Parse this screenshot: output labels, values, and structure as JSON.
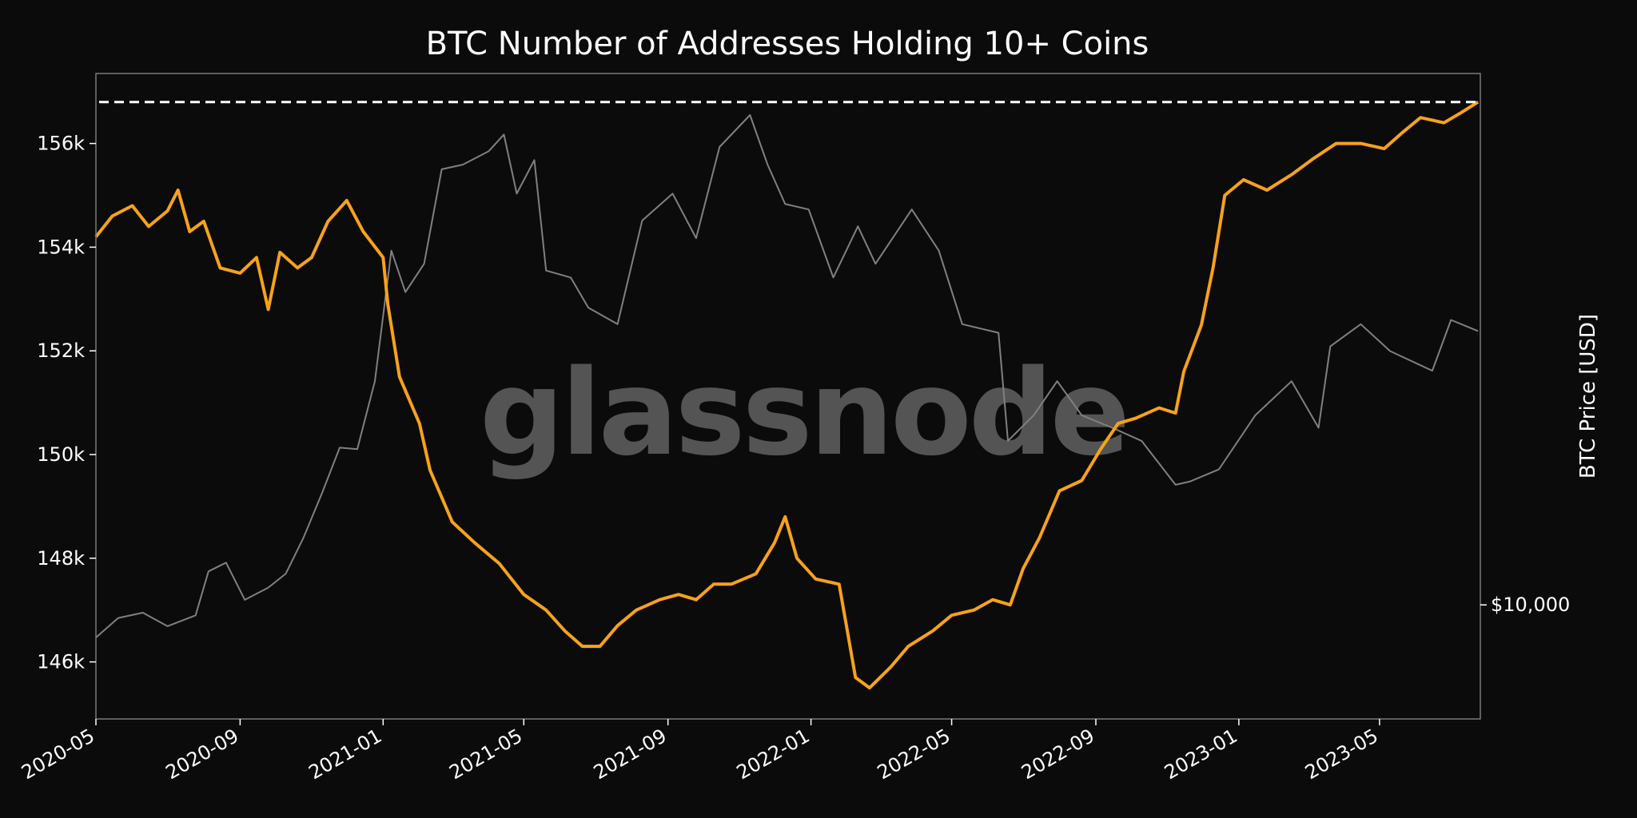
{
  "chart_data": {
    "type": "line",
    "title": "BTC Number of Addresses Holding 10+ Coins",
    "xlabel": "",
    "ylabel_left": "",
    "ylabel_right": "BTC Price [USD]",
    "x_ticks": [
      "2020-05",
      "2020-09",
      "2021-01",
      "2021-05",
      "2021-09",
      "2022-01",
      "2022-05",
      "2022-09",
      "2023-01",
      "2023-05"
    ],
    "y_ticks_left": [
      {
        "value": 146000,
        "label": "146k"
      },
      {
        "value": 148000,
        "label": "148k"
      },
      {
        "value": 150000,
        "label": "150k"
      },
      {
        "value": 152000,
        "label": "152k"
      },
      {
        "value": 154000,
        "label": "154k"
      },
      {
        "value": 156000,
        "label": "156k"
      }
    ],
    "y_ticks_right": [
      {
        "value": 10000,
        "label": "$10,000"
      }
    ],
    "xlim": [
      "2020-05-01",
      "2023-07-26"
    ],
    "ylim_left": [
      144900,
      157350
    ],
    "ylim_right_log": [
      6400,
      80000
    ],
    "watermark": "glassnode",
    "colors": {
      "background": "#0b0b0b",
      "addresses_line": "#f7a21b",
      "price_line": "#808080",
      "ath_line": "#ffffff",
      "axes": "#7a7a7a",
      "watermark": "#5c5c5c"
    },
    "ath_level": 156800,
    "series": [
      {
        "key": "addresses",
        "axis": "left",
        "points": [
          [
            "2020-05-01",
            154200
          ],
          [
            "2020-05-15",
            154600
          ],
          [
            "2020-06-01",
            154800
          ],
          [
            "2020-06-15",
            154400
          ],
          [
            "2020-07-01",
            154700
          ],
          [
            "2020-07-10",
            155100
          ],
          [
            "2020-07-20",
            154300
          ],
          [
            "2020-08-01",
            154500
          ],
          [
            "2020-08-15",
            153600
          ],
          [
            "2020-09-01",
            153500
          ],
          [
            "2020-09-15",
            153800
          ],
          [
            "2020-09-25",
            152800
          ],
          [
            "2020-10-05",
            153900
          ],
          [
            "2020-10-20",
            153600
          ],
          [
            "2020-11-01",
            153800
          ],
          [
            "2020-11-15",
            154500
          ],
          [
            "2020-12-01",
            154900
          ],
          [
            "2020-12-15",
            154300
          ],
          [
            "2021-01-01",
            153800
          ],
          [
            "2021-01-05",
            152900
          ],
          [
            "2021-01-15",
            151500
          ],
          [
            "2021-02-01",
            150600
          ],
          [
            "2021-02-10",
            149700
          ],
          [
            "2021-03-01",
            148700
          ],
          [
            "2021-03-20",
            148300
          ],
          [
            "2021-04-10",
            147900
          ],
          [
            "2021-05-01",
            147300
          ],
          [
            "2021-05-20",
            147000
          ],
          [
            "2021-06-05",
            146600
          ],
          [
            "2021-06-20",
            146300
          ],
          [
            "2021-07-05",
            146300
          ],
          [
            "2021-07-20",
            146700
          ],
          [
            "2021-08-05",
            147000
          ],
          [
            "2021-08-25",
            147200
          ],
          [
            "2021-09-10",
            147300
          ],
          [
            "2021-09-25",
            147200
          ],
          [
            "2021-10-10",
            147500
          ],
          [
            "2021-10-25",
            147500
          ],
          [
            "2021-11-15",
            147700
          ],
          [
            "2021-12-01",
            148300
          ],
          [
            "2021-12-10",
            148800
          ],
          [
            "2021-12-20",
            148000
          ],
          [
            "2022-01-05",
            147600
          ],
          [
            "2022-01-25",
            147500
          ],
          [
            "2022-02-08",
            145700
          ],
          [
            "2022-02-20",
            145500
          ],
          [
            "2022-03-10",
            145900
          ],
          [
            "2022-03-25",
            146300
          ],
          [
            "2022-04-15",
            146600
          ],
          [
            "2022-05-01",
            146900
          ],
          [
            "2022-05-20",
            147000
          ],
          [
            "2022-06-05",
            147200
          ],
          [
            "2022-06-20",
            147100
          ],
          [
            "2022-07-01",
            147800
          ],
          [
            "2022-07-15",
            148400
          ],
          [
            "2022-08-01",
            149300
          ],
          [
            "2022-08-20",
            149500
          ],
          [
            "2022-09-05",
            150100
          ],
          [
            "2022-09-20",
            150600
          ],
          [
            "2022-10-05",
            150700
          ],
          [
            "2022-10-25",
            150900
          ],
          [
            "2022-11-08",
            150800
          ],
          [
            "2022-11-15",
            151600
          ],
          [
            "2022-11-30",
            152500
          ],
          [
            "2022-12-10",
            153600
          ],
          [
            "2022-12-20",
            155000
          ],
          [
            "2023-01-05",
            155300
          ],
          [
            "2023-01-25",
            155100
          ],
          [
            "2023-02-15",
            155400
          ],
          [
            "2023-03-05",
            155700
          ],
          [
            "2023-03-25",
            156000
          ],
          [
            "2023-04-15",
            156000
          ],
          [
            "2023-05-05",
            155900
          ],
          [
            "2023-05-20",
            156200
          ],
          [
            "2023-06-05",
            156500
          ],
          [
            "2023-06-25",
            156400
          ],
          [
            "2023-07-10",
            156600
          ],
          [
            "2023-07-24",
            156800
          ]
        ]
      },
      {
        "key": "price",
        "axis": "right",
        "points": [
          [
            "2020-05-01",
            8800
          ],
          [
            "2020-05-20",
            9500
          ],
          [
            "2020-06-10",
            9700
          ],
          [
            "2020-07-01",
            9200
          ],
          [
            "2020-07-25",
            9600
          ],
          [
            "2020-08-05",
            11400
          ],
          [
            "2020-08-20",
            11800
          ],
          [
            "2020-09-05",
            10200
          ],
          [
            "2020-09-25",
            10700
          ],
          [
            "2020-10-10",
            11300
          ],
          [
            "2020-10-25",
            13000
          ],
          [
            "2020-11-10",
            15500
          ],
          [
            "2020-11-25",
            18500
          ],
          [
            "2020-12-10",
            18400
          ],
          [
            "2020-12-25",
            24000
          ],
          [
            "2021-01-08",
            40000
          ],
          [
            "2021-01-20",
            34000
          ],
          [
            "2021-02-05",
            38000
          ],
          [
            "2021-02-20",
            55000
          ],
          [
            "2021-03-10",
            56000
          ],
          [
            "2021-04-01",
            59000
          ],
          [
            "2021-04-14",
            63000
          ],
          [
            "2021-04-25",
            50000
          ],
          [
            "2021-05-10",
            57000
          ],
          [
            "2021-05-20",
            37000
          ],
          [
            "2021-06-10",
            36000
          ],
          [
            "2021-06-25",
            32000
          ],
          [
            "2021-07-20",
            30000
          ],
          [
            "2021-08-10",
            45000
          ],
          [
            "2021-09-05",
            50000
          ],
          [
            "2021-09-25",
            42000
          ],
          [
            "2021-10-15",
            60000
          ],
          [
            "2021-11-10",
            68000
          ],
          [
            "2021-11-25",
            56000
          ],
          [
            "2021-12-10",
            48000
          ],
          [
            "2021-12-30",
            47000
          ],
          [
            "2022-01-20",
            36000
          ],
          [
            "2022-02-10",
            44000
          ],
          [
            "2022-02-25",
            38000
          ],
          [
            "2022-03-28",
            47000
          ],
          [
            "2022-04-20",
            40000
          ],
          [
            "2022-05-10",
            30000
          ],
          [
            "2022-06-10",
            29000
          ],
          [
            "2022-06-18",
            19000
          ],
          [
            "2022-07-10",
            21000
          ],
          [
            "2022-07-30",
            24000
          ],
          [
            "2022-08-20",
            21000
          ],
          [
            "2022-09-15",
            20000
          ],
          [
            "2022-10-10",
            19000
          ],
          [
            "2022-11-08",
            16000
          ],
          [
            "2022-11-20",
            16200
          ],
          [
            "2022-12-15",
            17000
          ],
          [
            "2023-01-15",
            21000
          ],
          [
            "2023-02-15",
            24000
          ],
          [
            "2023-03-10",
            20000
          ],
          [
            "2023-03-20",
            27500
          ],
          [
            "2023-04-15",
            30000
          ],
          [
            "2023-05-10",
            27000
          ],
          [
            "2023-06-15",
            25000
          ],
          [
            "2023-07-01",
            30500
          ],
          [
            "2023-07-24",
            29200
          ]
        ]
      }
    ]
  }
}
